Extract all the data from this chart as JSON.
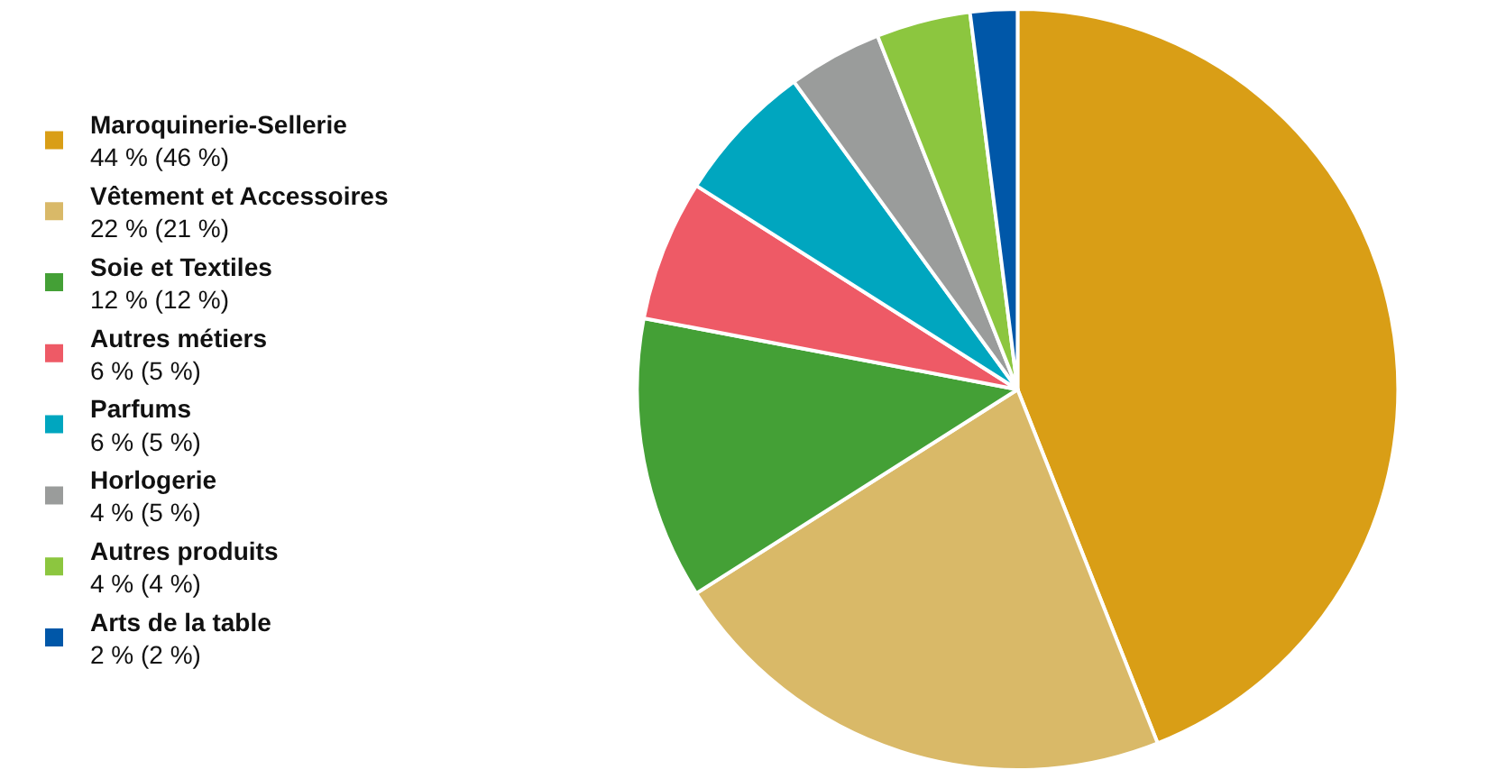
{
  "chart_data": {
    "type": "pie",
    "categories": [
      "Maroquinerie-Sellerie",
      "Vêtement et Accessoires",
      "Soie et Textiles",
      "Autres métiers",
      "Parfums",
      "Horlogerie",
      "Autres produits",
      "Arts de la table"
    ],
    "values": [
      44,
      22,
      12,
      6,
      6,
      4,
      4,
      2
    ],
    "value_labels": [
      "44 % (46 %)",
      "22 % (21 %)",
      "12 % (12 %)",
      "6 % (5 %)",
      "6 % (5 %)",
      "4 % (5 %)",
      "4 % (4 %)",
      "2 % (2 %)"
    ],
    "colors": [
      "#d99e16",
      "#d9b968",
      "#44a036",
      "#ee5a66",
      "#00a6bf",
      "#9a9c9b",
      "#8cc63f",
      "#0057a8"
    ],
    "legend": "left"
  }
}
